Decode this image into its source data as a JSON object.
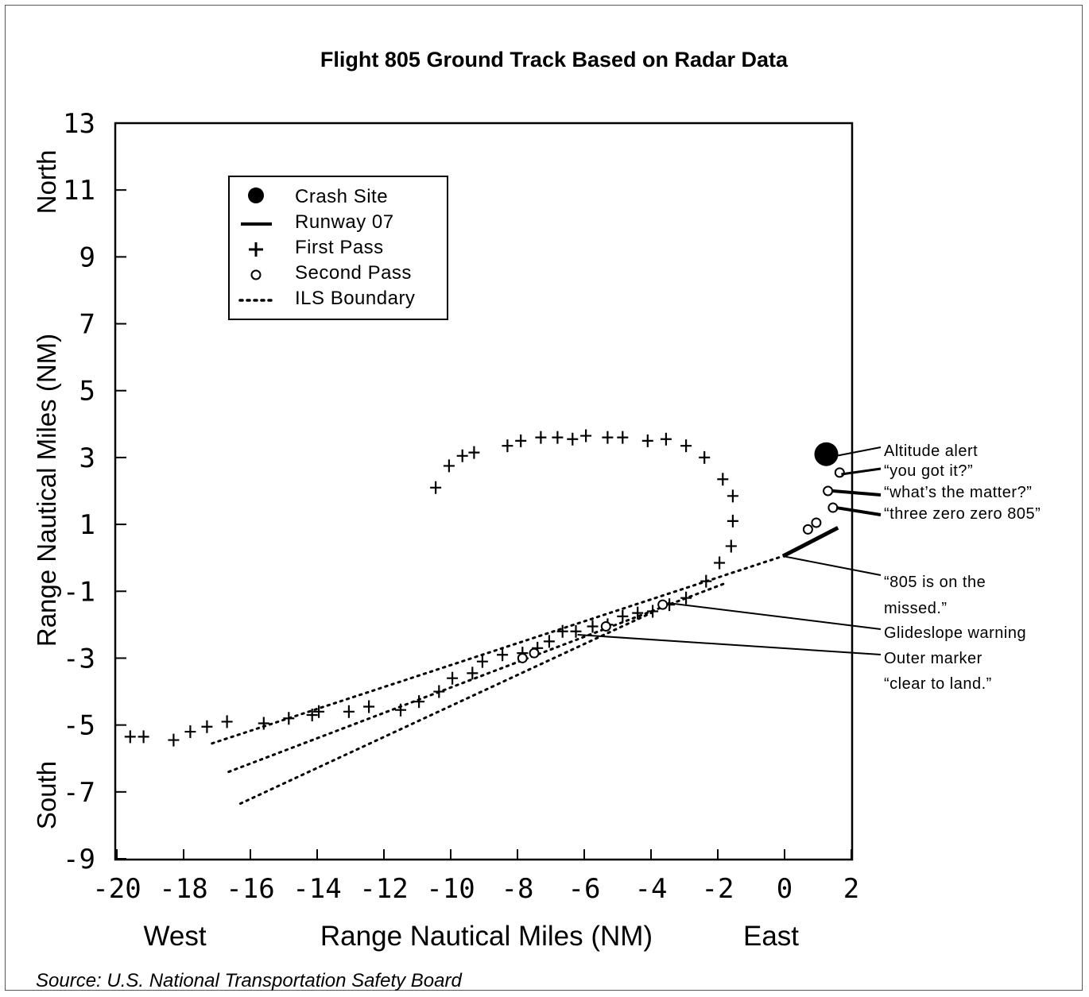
{
  "chart_data": {
    "type": "scatter",
    "title": "Flight 805 Ground Track Based on Radar Data",
    "xlabel": "Range Nautical Miles (NM)",
    "ylabel": "Range Nautical Miles (NM)",
    "x_west_label": "West",
    "x_east_label": "East",
    "y_north_label": "North",
    "y_south_label": "South",
    "xlim": [
      -20,
      2
    ],
    "ylim": [
      -9,
      13
    ],
    "xticks": [
      "-20",
      "-18",
      "-16",
      "-14",
      "-12",
      "-10",
      "-8",
      "-6",
      "-4",
      "-2",
      "0",
      "2"
    ],
    "yticks": [
      "13",
      "11",
      "9",
      "7",
      "5",
      "3",
      "1",
      "-1",
      "-3",
      "-5",
      "-7",
      "-9"
    ],
    "grid": false,
    "legend": {
      "position": "top-left",
      "entries": [
        {
          "marker": "filled-circle",
          "label": "Crash Site"
        },
        {
          "marker": "thick-line",
          "label": "Runway 07"
        },
        {
          "marker": "plus",
          "label": "First Pass"
        },
        {
          "marker": "open-circle",
          "label": "Second Pass"
        },
        {
          "marker": "dotted-line",
          "label": "ILS Boundary"
        }
      ]
    },
    "series": [
      {
        "name": "First Pass",
        "marker": "plus",
        "points": [
          [
            -19.6,
            -5.35
          ],
          [
            -19.2,
            -5.35
          ],
          [
            -18.3,
            -5.45
          ],
          [
            -17.8,
            -5.2
          ],
          [
            -17.3,
            -5.05
          ],
          [
            -16.7,
            -4.9
          ],
          [
            -15.6,
            -4.95
          ],
          [
            -14.85,
            -4.8
          ],
          [
            -14.15,
            -4.7
          ],
          [
            -13.95,
            -4.6
          ],
          [
            -13.05,
            -4.6
          ],
          [
            -12.45,
            -4.45
          ],
          [
            -11.5,
            -4.55
          ],
          [
            -10.95,
            -4.3
          ],
          [
            -10.35,
            -4.0
          ],
          [
            -9.95,
            -3.6
          ],
          [
            -9.35,
            -3.45
          ],
          [
            -9.05,
            -3.1
          ],
          [
            -8.45,
            -2.9
          ],
          [
            -7.85,
            -2.85
          ],
          [
            -7.4,
            -2.7
          ],
          [
            -7.05,
            -2.5
          ],
          [
            -6.65,
            -2.2
          ],
          [
            -6.25,
            -2.2
          ],
          [
            -5.75,
            -2.05
          ],
          [
            -5.3,
            -2.0
          ],
          [
            -4.85,
            -1.75
          ],
          [
            -4.4,
            -1.65
          ],
          [
            -3.95,
            -1.6
          ],
          [
            -3.45,
            -1.4
          ],
          [
            -2.95,
            -1.2
          ],
          [
            -2.35,
            -0.7
          ],
          [
            -1.95,
            -0.15
          ],
          [
            -1.6,
            0.35
          ],
          [
            -1.55,
            1.1
          ],
          [
            -1.55,
            1.85
          ],
          [
            -1.85,
            2.35
          ],
          [
            -2.4,
            3.0
          ],
          [
            -2.95,
            3.35
          ],
          [
            -3.55,
            3.55
          ],
          [
            -4.1,
            3.5
          ],
          [
            -4.85,
            3.6
          ],
          [
            -5.3,
            3.6
          ],
          [
            -5.95,
            3.65
          ],
          [
            -6.35,
            3.55
          ],
          [
            -6.8,
            3.6
          ],
          [
            -7.3,
            3.6
          ],
          [
            -7.9,
            3.5
          ],
          [
            -8.3,
            3.35
          ],
          [
            -9.3,
            3.15
          ],
          [
            -9.65,
            3.05
          ],
          [
            -10.05,
            2.75
          ],
          [
            -10.45,
            2.1
          ]
        ]
      },
      {
        "name": "Second Pass",
        "marker": "open-circle",
        "points": [
          [
            -7.85,
            -3.0
          ],
          [
            -7.5,
            -2.85
          ],
          [
            -5.35,
            -2.05
          ],
          [
            -3.65,
            -1.4
          ],
          [
            0.7,
            0.85
          ],
          [
            0.95,
            1.05
          ],
          [
            1.45,
            1.5
          ],
          [
            1.3,
            2.0
          ],
          [
            1.65,
            2.55
          ]
        ]
      },
      {
        "name": "Crash Site",
        "marker": "filled-circle",
        "points": [
          [
            1.25,
            3.1
          ]
        ]
      }
    ],
    "runway": {
      "name": "Runway 07",
      "from": [
        -0.05,
        0.05
      ],
      "to": [
        1.6,
        0.9
      ]
    },
    "ils_boundary": [
      {
        "from": [
          -17.15,
          -5.55
        ],
        "to": [
          -0.05,
          0.05
        ]
      },
      {
        "from": [
          -16.65,
          -6.4
        ],
        "to": [
          -1.75,
          -0.75
        ]
      },
      {
        "from": [
          -16.3,
          -7.35
        ],
        "to": [
          -4.0,
          -1.65
        ]
      }
    ],
    "annotations": [
      {
        "text": "Altitude alert",
        "points_to": [
          1.3,
          3.0
        ]
      },
      {
        "text": "“you got it?”",
        "points_to": [
          1.7,
          2.5
        ]
      },
      {
        "text": "“what’s the matter?”",
        "points_to": [
          1.45,
          2.0
        ]
      },
      {
        "text": "“three zero zero 805”",
        "points_to": [
          1.55,
          1.5
        ]
      },
      {
        "text": "“805 is on the",
        "points_to": [
          -0.05,
          0.05
        ]
      },
      {
        "text": "missed.”",
        "points_to": null
      },
      {
        "text": "Glideslope warning",
        "points_to": [
          -3.5,
          -1.35
        ]
      },
      {
        "text": "Outer marker",
        "points_to": [
          -6.2,
          -2.3
        ]
      },
      {
        "text": "“clear to land.”",
        "points_to": null
      }
    ]
  },
  "source": "Source: U.S. National Transportation Safety Board"
}
